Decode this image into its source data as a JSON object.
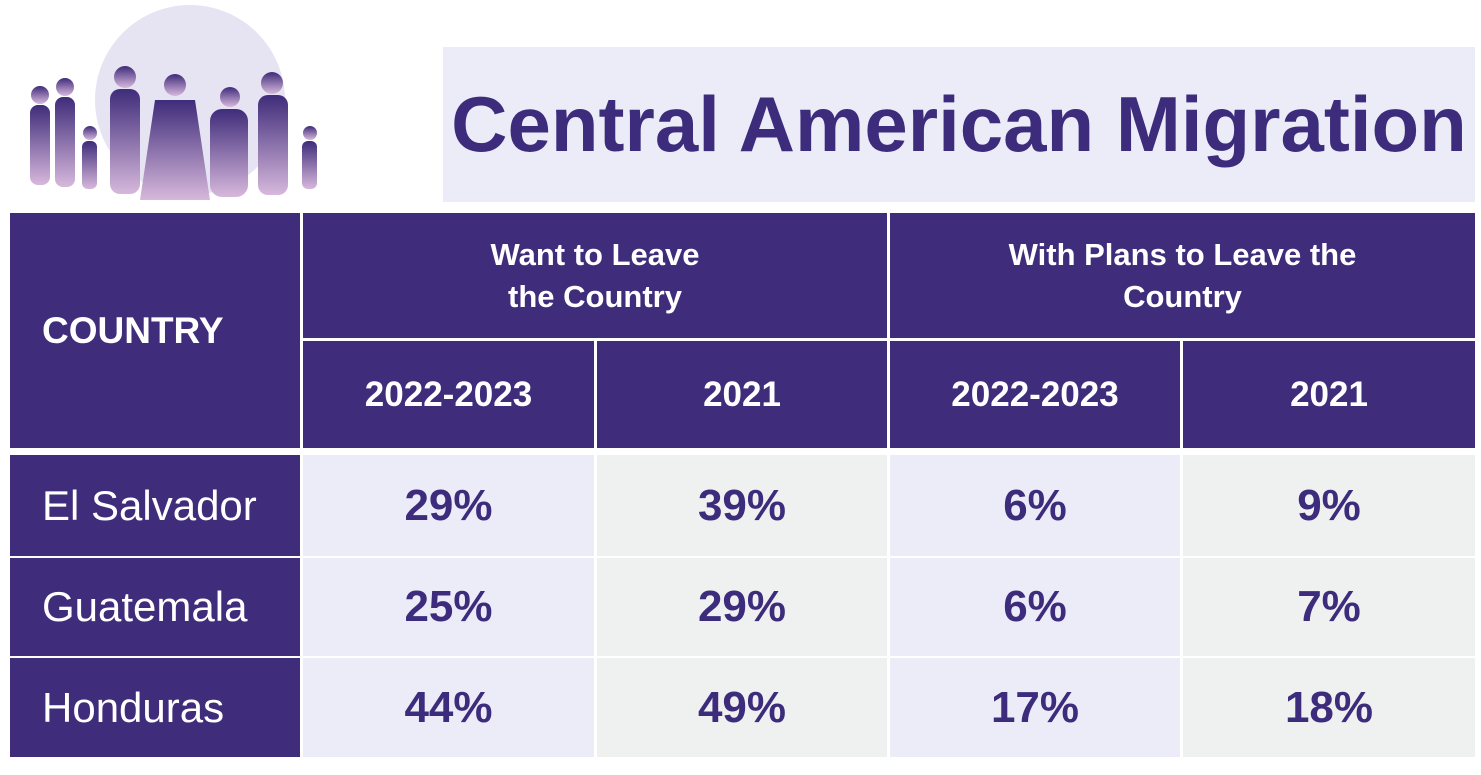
{
  "header": {
    "title": "Central American Migration"
  },
  "table": {
    "country_header": "COUNTRY",
    "groups": [
      "Want to Leave the Country",
      "With Plans to Leave the Country"
    ],
    "columns": [
      "2022-2023",
      "2021",
      "2022-2023",
      "2021"
    ],
    "rows": [
      [
        "El Salvador",
        "29%",
        "39%",
        "6%",
        "9%"
      ],
      [
        "Guatemala",
        "25%",
        "29%",
        "6%",
        "7%"
      ],
      [
        "Honduras",
        "44%",
        "49%",
        "17%",
        "18%"
      ]
    ]
  }
}
